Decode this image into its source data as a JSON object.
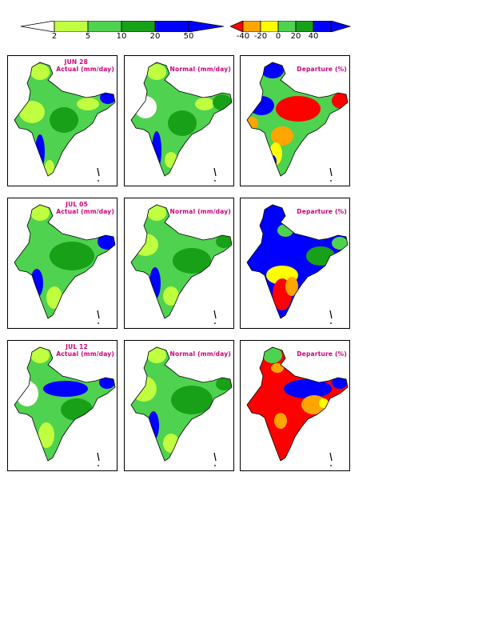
{
  "colorbars": {
    "absolute": {
      "ticks": [
        "2",
        "5",
        "10",
        "20",
        "50"
      ],
      "colors": [
        "#ffffff",
        "#bfff3f",
        "#4fd24f",
        "#18a018",
        "#0000ff"
      ]
    },
    "departure": {
      "ticks": [
        "-40",
        "-20",
        "0",
        "20",
        "40"
      ],
      "colors": [
        "#ff0000",
        "#ffa500",
        "#ffff00",
        "#4fd24f",
        "#18a018",
        "#0000ff"
      ]
    }
  },
  "rows": [
    {
      "date": "JUN 28",
      "actual_title": "Actual (mm/day)",
      "normal_title": "Normal (mm/day)",
      "departure_title": "Departure (%)"
    },
    {
      "date": "JUL 05",
      "actual_title": "Actual (mm/day)",
      "normal_title": "Normal (mm/day)",
      "departure_title": "Departure (%)"
    },
    {
      "date": "JUL 12",
      "actual_title": "Actual (mm/day)",
      "normal_title": "Normal (mm/day)",
      "departure_title": "Departure (%)"
    }
  ]
}
